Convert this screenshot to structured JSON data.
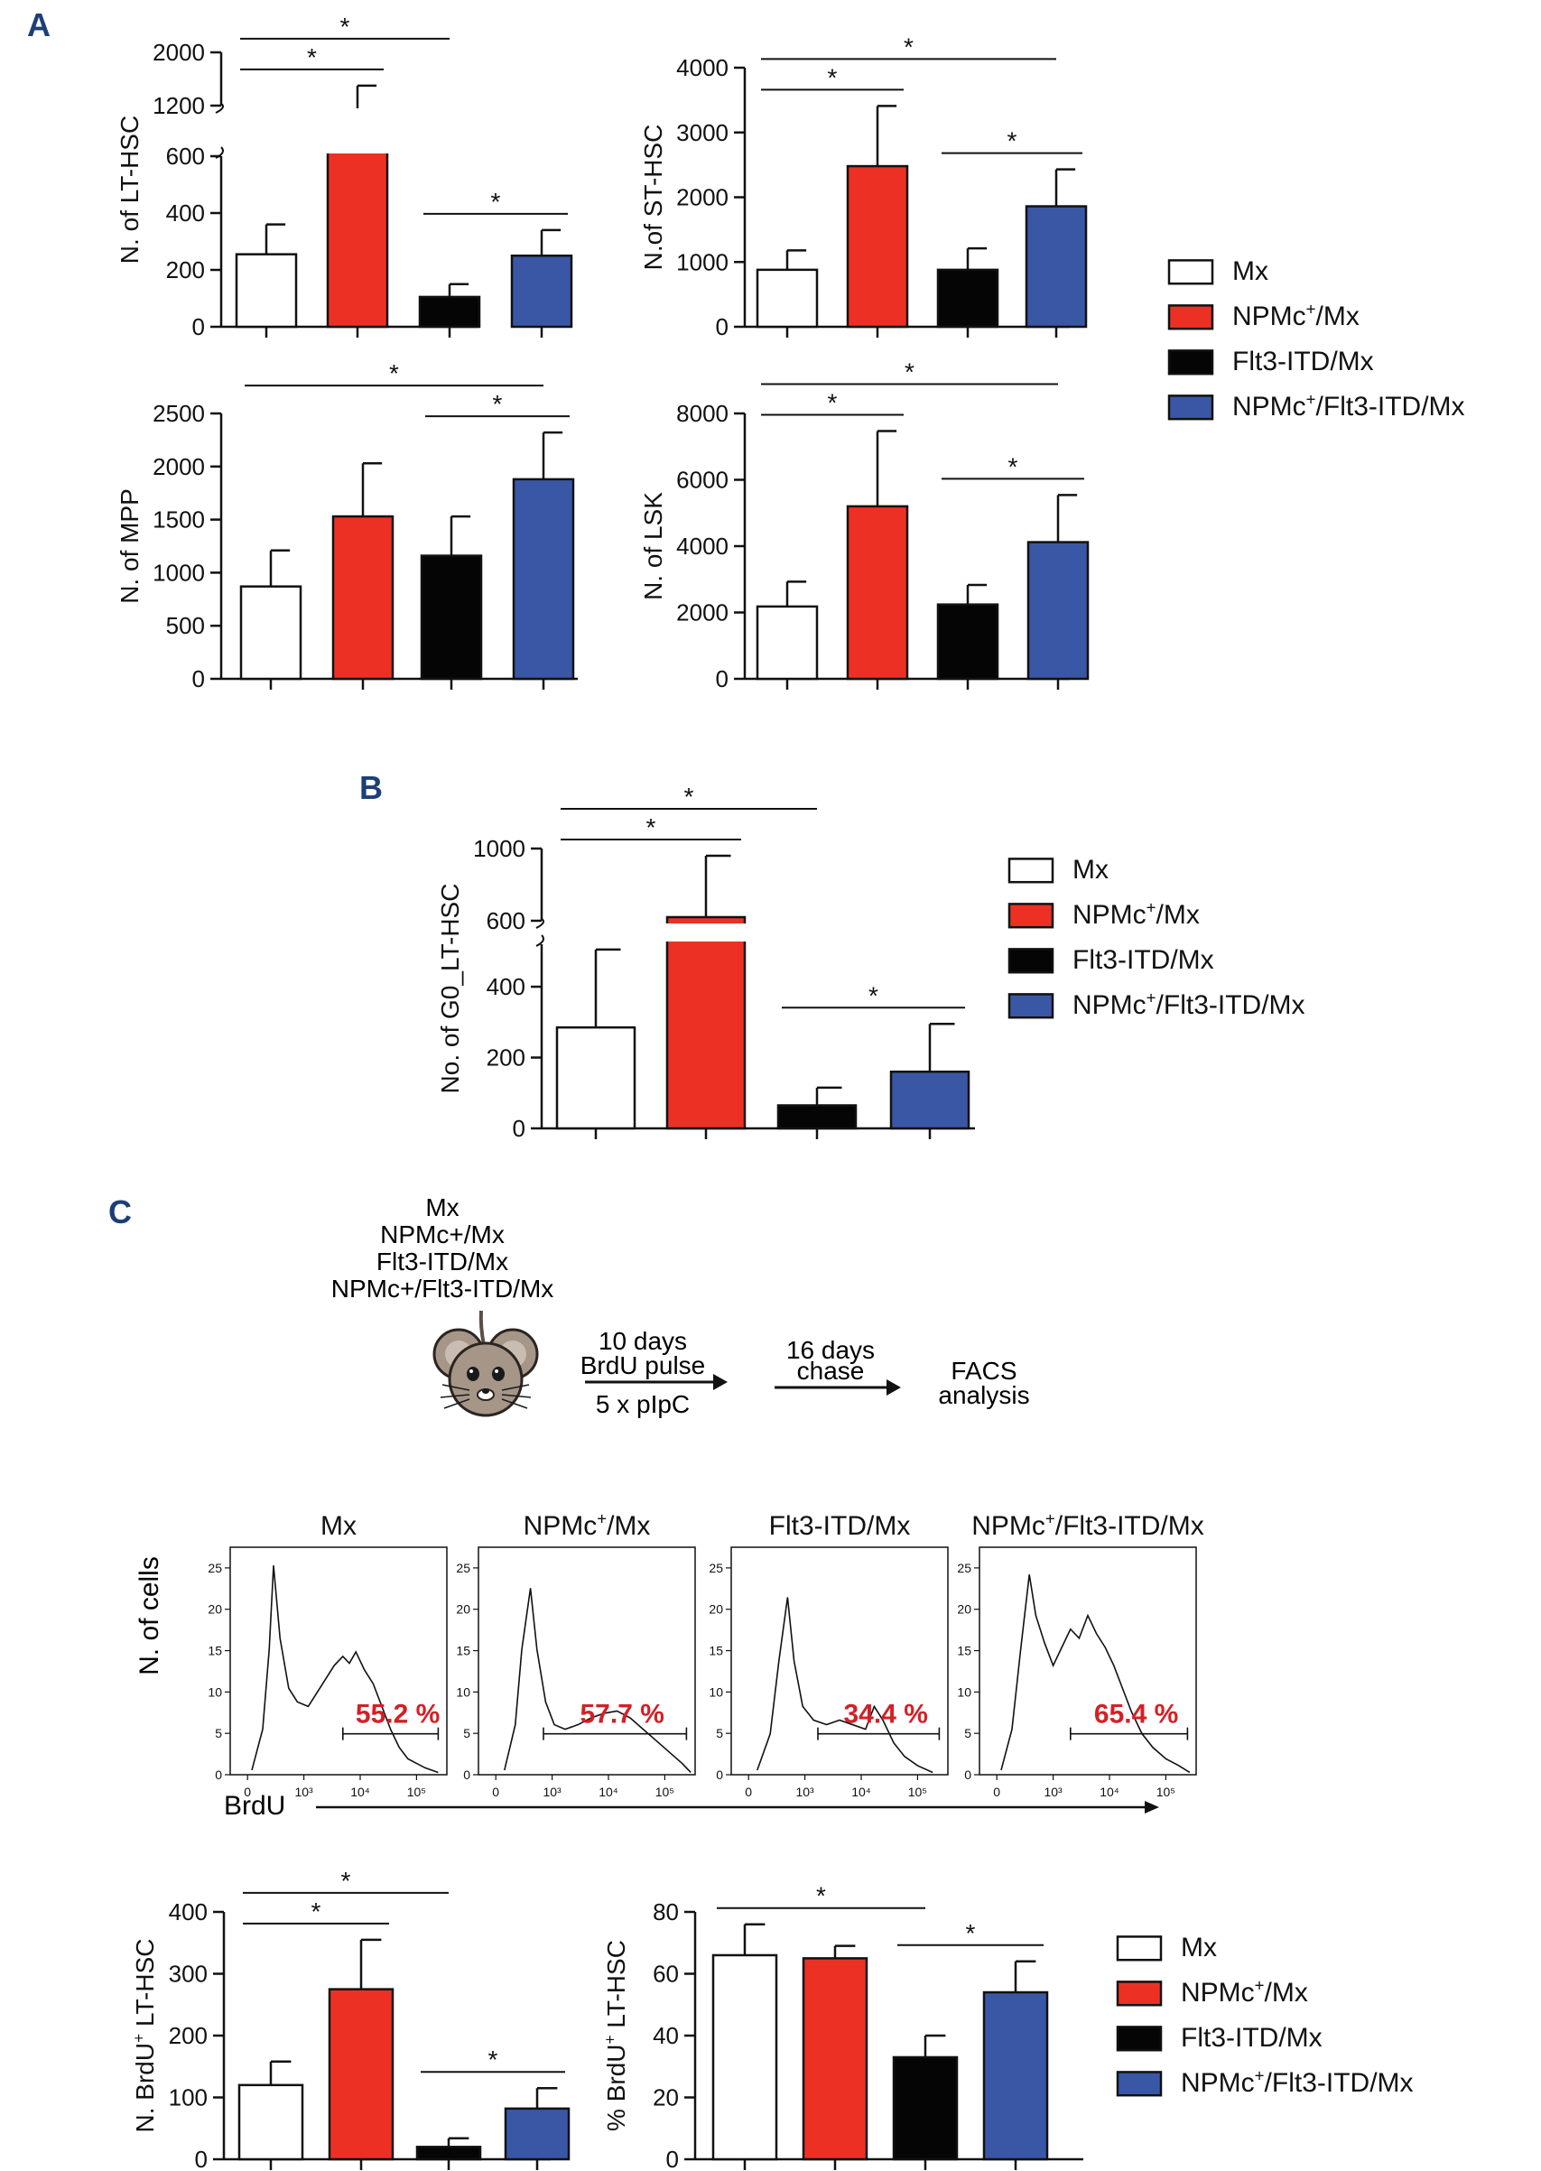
{
  "colors": {
    "mx": "#ffffff",
    "npmc": "#ec3124",
    "flt3": "#050505",
    "double": "#3a57a6",
    "panel_label": "#1c3f78",
    "gate_pct": "#d32027",
    "axis": "#111111"
  },
  "panels": {
    "a": "A",
    "b": "B",
    "c": "C"
  },
  "groups": [
    "Mx",
    "NPMc+/Mx",
    "Flt3-ITD/Mx",
    "NPMc+/Flt3-ITD/Mx"
  ],
  "legend": {
    "items": [
      {
        "base": "Mx",
        "sup": "",
        "rest": ""
      },
      {
        "base": "NPMc",
        "sup": "+",
        "rest": "/Mx"
      },
      {
        "base": "Flt3-ITD/Mx",
        "sup": "",
        "rest": ""
      },
      {
        "base": "NPMc",
        "sup": "+",
        "rest": "/Flt3-ITD/Mx"
      }
    ]
  },
  "sig_mark": "*",
  "chart_data": [
    {
      "id": "lt_hsc",
      "panel": "A",
      "type": "bar",
      "broken_axis": true,
      "ylabel": "N. of LT-HSC",
      "yticks_lower": [
        "0",
        "200",
        "400",
        "600"
      ],
      "yticks_upper": [
        "1200",
        "2000"
      ],
      "ylim_lower": [
        0,
        600
      ],
      "ylim_upper": [
        1200,
        2000
      ],
      "values": [
        255,
        1050,
        105,
        250
      ],
      "errors": [
        105,
        450,
        45,
        90
      ],
      "significance": [
        [
          0,
          1
        ],
        [
          0,
          2
        ],
        [
          2,
          3
        ]
      ]
    },
    {
      "id": "st_hsc",
      "panel": "A",
      "type": "bar",
      "ylabel": "N.of ST-HSC",
      "yticks": [
        "0",
        "1000",
        "2000",
        "3000",
        "4000"
      ],
      "ylim": [
        0,
        4000
      ],
      "values": [
        880,
        2480,
        880,
        1860
      ],
      "errors": [
        300,
        930,
        330,
        570
      ],
      "significance": [
        [
          0,
          1
        ],
        [
          0,
          3
        ],
        [
          2,
          3
        ]
      ]
    },
    {
      "id": "mpp",
      "panel": "A",
      "type": "bar",
      "ylabel": "N. of MPP",
      "yticks": [
        "0",
        "500",
        "1000",
        "1500",
        "2000",
        "2500"
      ],
      "ylim": [
        0,
        2500
      ],
      "values": [
        870,
        1530,
        1160,
        1880
      ],
      "errors": [
        340,
        500,
        370,
        440
      ],
      "significance": [
        [
          0,
          3
        ],
        [
          2,
          3
        ]
      ]
    },
    {
      "id": "lsk",
      "panel": "A",
      "type": "bar",
      "ylabel": "N. of LSK",
      "yticks": [
        "0",
        "2000",
        "4000",
        "6000",
        "8000"
      ],
      "ylim": [
        0,
        8000
      ],
      "values": [
        2180,
        5200,
        2240,
        4120
      ],
      "errors": [
        750,
        2270,
        590,
        1420
      ],
      "significance": [
        [
          0,
          1
        ],
        [
          0,
          3
        ],
        [
          2,
          3
        ]
      ]
    },
    {
      "id": "g0_lt_hsc",
      "panel": "B",
      "type": "bar",
      "broken_axis": true,
      "ylabel": "No. of G0_LT-HSC",
      "yticks_lower": [
        "0",
        "200",
        "400"
      ],
      "yticks_upper": [
        "600",
        "1000"
      ],
      "ylim_lower": [
        0,
        520
      ],
      "ylim_upper": [
        600,
        1000
      ],
      "values": [
        285,
        620,
        65,
        160
      ],
      "errors": [
        220,
        340,
        50,
        135
      ],
      "significance": [
        [
          0,
          1
        ],
        [
          0,
          2
        ],
        [
          2,
          3
        ]
      ]
    },
    {
      "id": "n_brdu",
      "panel": "C",
      "type": "bar",
      "ylabel_base": "N. BrdU",
      "ylabel_sup": "+",
      "ylabel_rest": " LT-HSC",
      "yticks": [
        "0",
        "100",
        "200",
        "300",
        "400"
      ],
      "ylim": [
        0,
        400
      ],
      "values": [
        120,
        275,
        20,
        82
      ],
      "errors": [
        38,
        80,
        14,
        33
      ],
      "significance": [
        [
          0,
          1
        ],
        [
          0,
          2
        ],
        [
          2,
          3
        ]
      ]
    },
    {
      "id": "pct_brdu",
      "panel": "C",
      "type": "bar",
      "ylabel_base": "% BrdU",
      "ylabel_sup": "+",
      "ylabel_rest": " LT-HSC",
      "yticks": [
        "0",
        "20",
        "40",
        "60",
        "80"
      ],
      "ylim": [
        0,
        80
      ],
      "values": [
        66,
        65,
        33,
        54
      ],
      "errors": [
        10,
        4,
        7,
        10
      ],
      "significance": [
        [
          0,
          2
        ],
        [
          2,
          3
        ]
      ]
    }
  ],
  "schematic": {
    "groups": [
      "Mx",
      "NPMc+/Mx",
      "Flt3-ITD/Mx",
      "NPMc+/Flt3-ITD/Mx"
    ],
    "step1_top": "10 days",
    "step1_mid": "BrdU pulse",
    "step1_bottom": "5 x pIpC",
    "step2_top": "16 days",
    "step2_mid": "chase",
    "step3_top": "FACS",
    "step3_mid": "analysis"
  },
  "histograms": {
    "ylabel": "N. of cells",
    "xlabel": "BrdU",
    "yticks": [
      "0",
      "5",
      "10",
      "15",
      "20",
      "25"
    ],
    "xticks": [
      "0",
      "10³",
      "10⁴",
      "10⁵"
    ],
    "items": [
      {
        "title_base": "Mx",
        "title_sup": "",
        "title_rest": "",
        "gate_pct": "55.2 %"
      },
      {
        "title_base": "NPMc",
        "title_sup": "+",
        "title_rest": "/Mx",
        "gate_pct": "57.7 %"
      },
      {
        "title_base": "Flt3-ITD/Mx",
        "title_sup": "",
        "title_rest": "",
        "gate_pct": "34.4 %"
      },
      {
        "title_base": "NPMc",
        "title_sup": "+",
        "title_rest": "/Flt3-ITD/Mx",
        "gate_pct": "65.4 %"
      }
    ]
  }
}
